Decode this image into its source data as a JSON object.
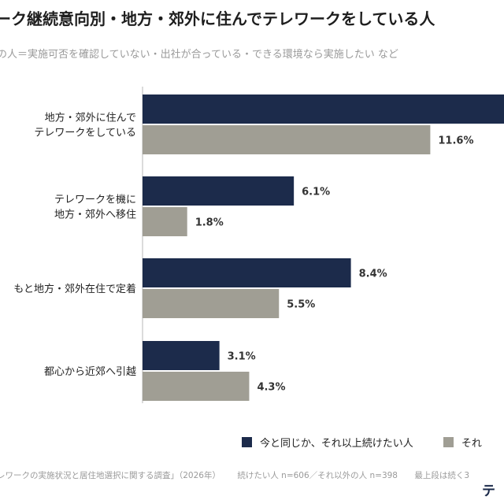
{
  "header": {
    "title": "ーク継続意向別・地方・郊外に住んでテレワークをしている人",
    "subtitle": "の人＝実施可否を確認していない・出社が合っている・できる環境なら実施したい など"
  },
  "colors": {
    "series1": "#1c2b4b",
    "series2": "#a09e94",
    "axis": "#cfcfcf"
  },
  "chart_data": {
    "type": "bar",
    "orientation": "horizontal",
    "categories": [
      [
        "地方・郊外に住んで",
        "テレワークをしている"
      ],
      [
        "テレワークを機に",
        "地方・郊外へ移住"
      ],
      [
        "もと地方・郊外在住で定着"
      ],
      [
        "都心から近郊へ引越"
      ]
    ],
    "series": [
      {
        "name": "今と同じか、それ以上続けたい人",
        "values": [
          null,
          6.1,
          8.4,
          3.1
        ],
        "labels": [
          "",
          "6.1%",
          "8.4%",
          "3.1%"
        ]
      },
      {
        "name": "それ",
        "values": [
          11.6,
          1.8,
          5.5,
          4.3
        ],
        "labels": [
          "11.6%",
          "1.8%",
          "5.5%",
          "4.3%"
        ]
      }
    ],
    "xlim": [
      0,
      14
    ],
    "legend_position": "bottom"
  },
  "legend": {
    "item1": "今と同じか、それ以上続けたい人",
    "item2": "それ"
  },
  "footer": {
    "source": "レワークの実施状況と居住地選択に関する調査」（2026年）",
    "sample": "続けたい人 n=606／それ以外の人 n=398",
    "note": "最上段は続く3"
  },
  "brand": "テ"
}
